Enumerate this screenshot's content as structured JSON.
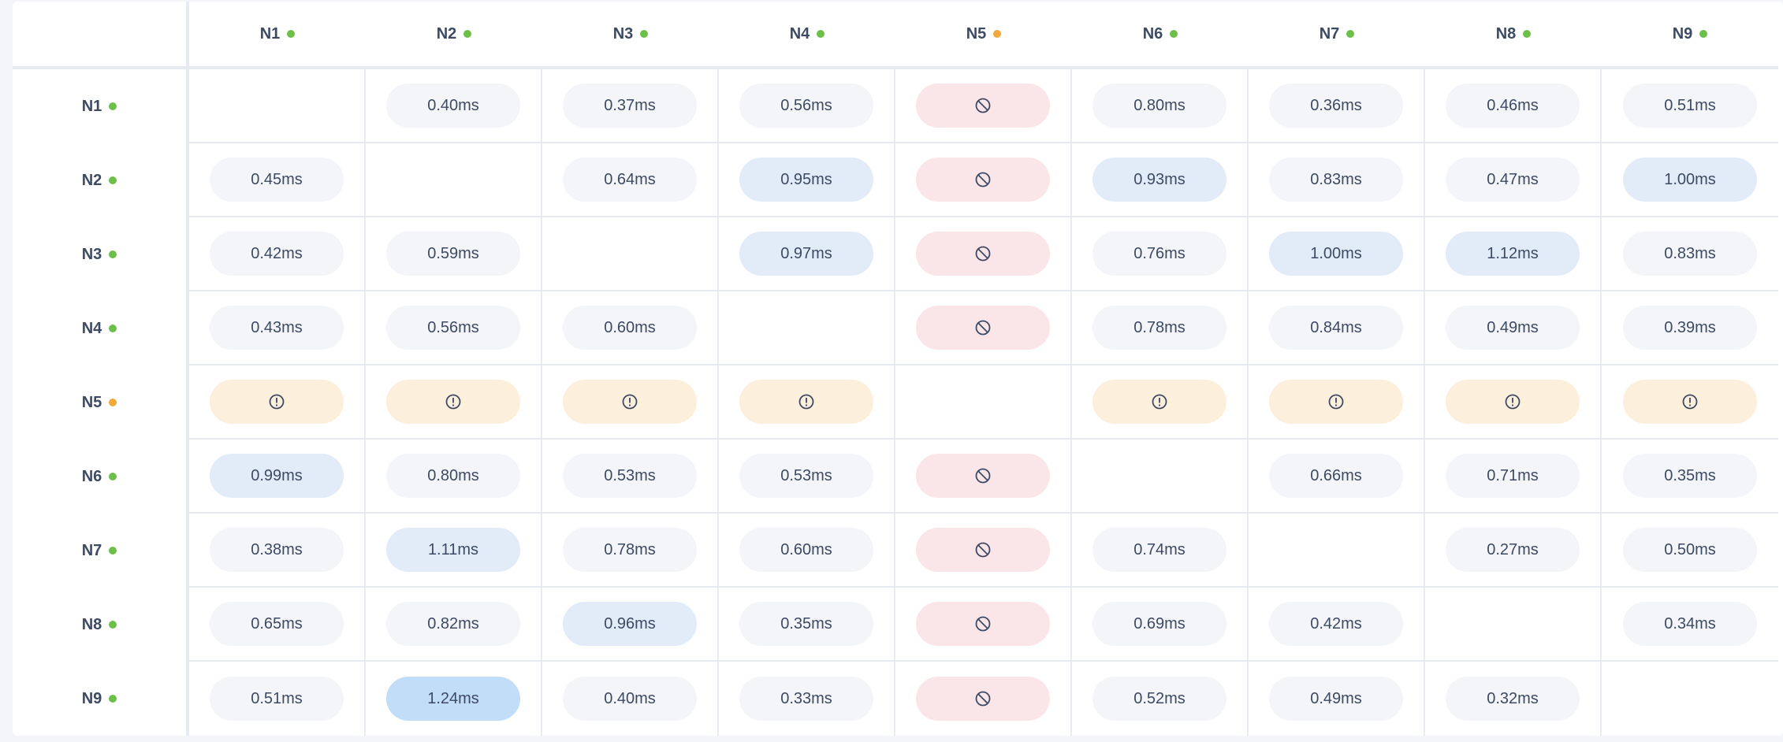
{
  "colors": {
    "ok": "#6cc04a",
    "warning": "#f2a93b",
    "blocked_bg": "#fae6e8",
    "warning_bg": "#fcf0dc",
    "slow_bg": "#e2ecf8",
    "slowest_bg": "#c2ddf8",
    "normal_bg": "#f4f5f9"
  },
  "nodes": [
    {
      "label": "N1",
      "status": "ok"
    },
    {
      "label": "N2",
      "status": "ok"
    },
    {
      "label": "N3",
      "status": "ok"
    },
    {
      "label": "N4",
      "status": "ok"
    },
    {
      "label": "N5",
      "status": "warning"
    },
    {
      "label": "N6",
      "status": "ok"
    },
    {
      "label": "N7",
      "status": "ok"
    },
    {
      "label": "N8",
      "status": "ok"
    },
    {
      "label": "N9",
      "status": "ok"
    }
  ],
  "icons": {
    "blocked": "blocked-icon",
    "warning": "exclamation-circle-icon"
  },
  "matrix": [
    [
      "",
      "0.40ms",
      "0.37ms",
      "0.56ms",
      "blocked",
      "0.80ms",
      "0.36ms",
      "0.46ms",
      "0.51ms"
    ],
    [
      "0.45ms",
      "",
      "0.64ms",
      "0.95ms",
      "blocked",
      "0.93ms",
      "0.83ms",
      "0.47ms",
      "1.00ms"
    ],
    [
      "0.42ms",
      "0.59ms",
      "",
      "0.97ms",
      "blocked",
      "0.76ms",
      "1.00ms",
      "1.12ms",
      "0.83ms"
    ],
    [
      "0.43ms",
      "0.56ms",
      "0.60ms",
      "",
      "blocked",
      "0.78ms",
      "0.84ms",
      "0.49ms",
      "0.39ms"
    ],
    [
      "warning",
      "warning",
      "warning",
      "warning",
      "",
      "warning",
      "warning",
      "warning",
      "warning"
    ],
    [
      "0.99ms",
      "0.80ms",
      "0.53ms",
      "0.53ms",
      "blocked",
      "",
      "0.66ms",
      "0.71ms",
      "0.35ms"
    ],
    [
      "0.38ms",
      "1.11ms",
      "0.78ms",
      "0.60ms",
      "blocked",
      "0.74ms",
      "",
      "0.27ms",
      "0.50ms"
    ],
    [
      "0.65ms",
      "0.82ms",
      "0.96ms",
      "0.35ms",
      "blocked",
      "0.69ms",
      "0.42ms",
      "",
      "0.34ms"
    ],
    [
      "0.51ms",
      "1.24ms",
      "0.40ms",
      "0.33ms",
      "blocked",
      "0.52ms",
      "0.49ms",
      "0.32ms",
      ""
    ]
  ]
}
